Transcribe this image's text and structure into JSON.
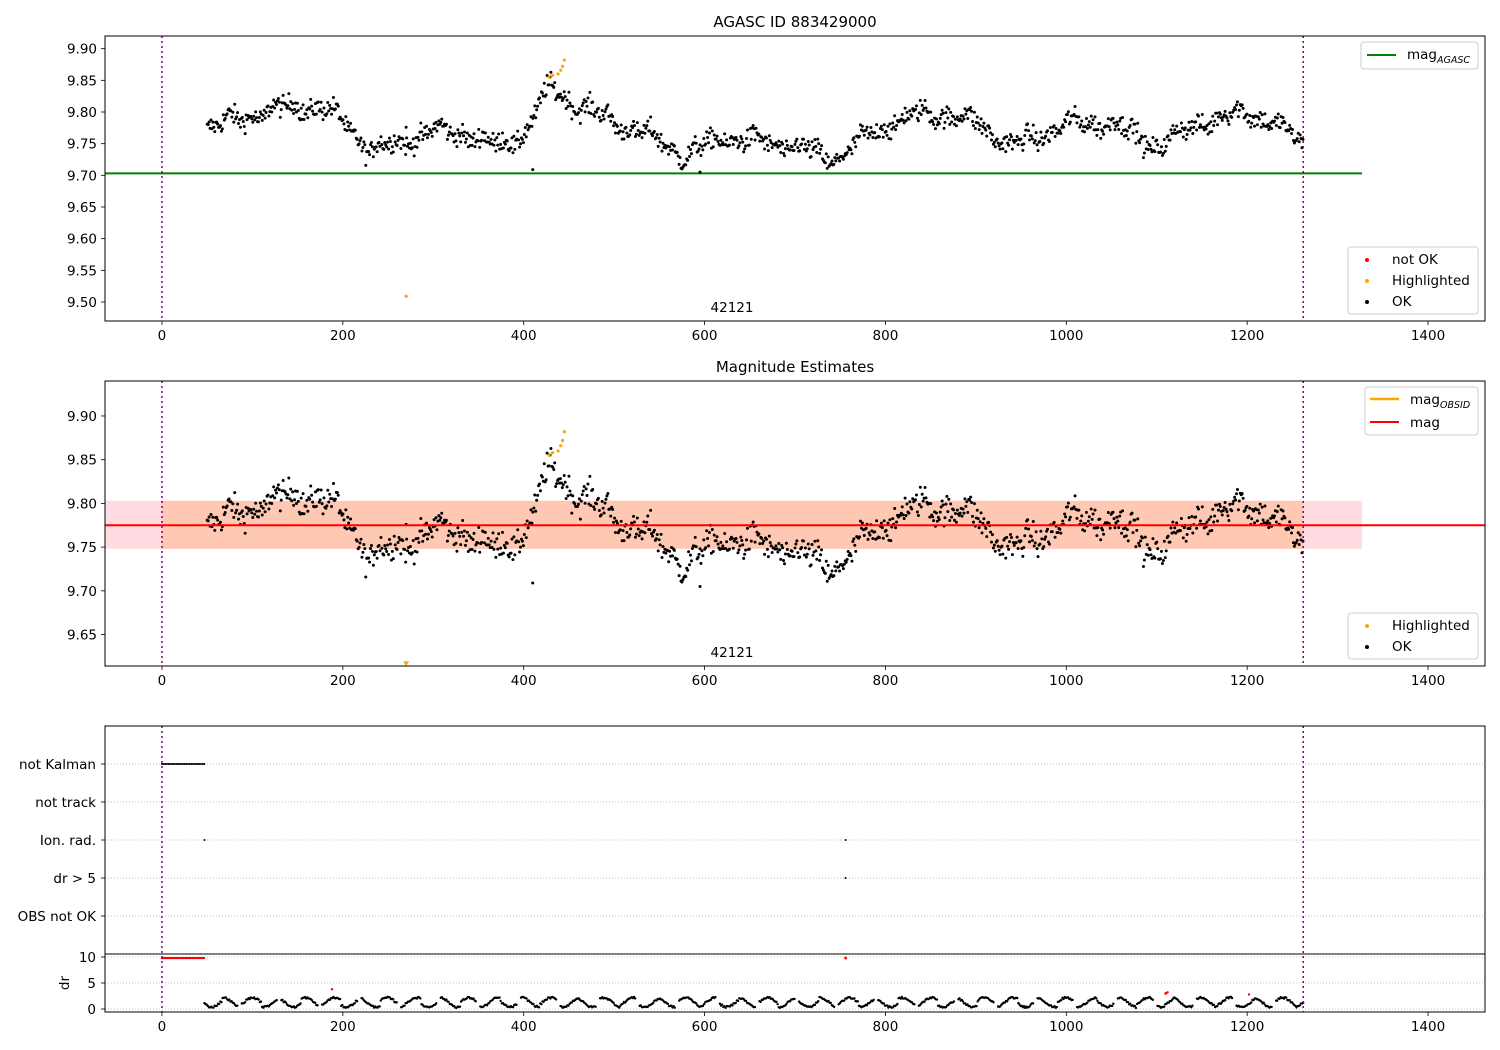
{
  "charts": {
    "top": {
      "title": "AGASC ID 883429000",
      "obsid_label": "42121",
      "mag_agasc": 9.703,
      "ylim": [
        9.47,
        9.92
      ],
      "yticks": [
        "9.50",
        "9.55",
        "9.60",
        "9.65",
        "9.70",
        "9.75",
        "9.80",
        "9.85",
        "9.90"
      ],
      "legend_line_label": "mag",
      "legend_line_sub": "AGASC",
      "legend_points": [
        "not OK",
        "Highlighted",
        "OK"
      ]
    },
    "mid": {
      "title": "Magnitude Estimates",
      "obsid_label": "42121",
      "mag": 9.775,
      "band": [
        9.748,
        9.803
      ],
      "ylim": [
        9.614,
        9.94
      ],
      "yticks": [
        "9.65",
        "9.70",
        "9.75",
        "9.80",
        "9.85",
        "9.90"
      ],
      "legend_line1_label": "mag",
      "legend_line1_sub": "OBSID",
      "legend_line2_label": "mag",
      "legend_points": [
        "Highlighted",
        "OK"
      ]
    },
    "flags": {
      "rows": [
        "not Kalman",
        "not track",
        "Ion. rad.",
        "dr > 5",
        "OBS not OK"
      ],
      "dr_label": "dr",
      "dr_ticks": [
        "0",
        "5",
        "10"
      ]
    },
    "xlim": [
      -63,
      1463
    ],
    "xticks": [
      "0",
      "200",
      "400",
      "600",
      "800",
      "1000",
      "1200",
      "1400"
    ],
    "obs_bounds": [
      0,
      1262
    ]
  },
  "colors": {
    "agasc_line": "#008000",
    "mag_line": "#ff0000",
    "obsid_line": "#ffa500",
    "highlighted": "#ffa500",
    "not_ok": "#ff0000",
    "ok": "#000000",
    "bounds": "#800080",
    "band": "#ffc0cb",
    "band_inner": "#ffb07a"
  },
  "chart_data": [
    {
      "type": "scatter",
      "title": "AGASC ID 883429000",
      "xlabel": "",
      "ylabel": "",
      "xlim": [
        -63,
        1463
      ],
      "ylim": [
        9.47,
        9.92
      ],
      "series": [
        {
          "name": "OK",
          "style": "black points",
          "description": "~1200 magnitude samples, x 50–1262, values ~9.71–9.85 following the curve in keypoints"
        },
        {
          "name": "Highlighted",
          "style": "orange points",
          "x": [
            270,
            428,
            432,
            438,
            441,
            443,
            445
          ],
          "values": [
            9.509,
            9.855,
            9.858,
            9.86,
            9.866,
            9.872,
            9.882
          ]
        },
        {
          "name": "mag_AGASC",
          "style": "green line",
          "values": [
            9.703
          ]
        }
      ],
      "trend_keypoints": {
        "x": [
          50,
          100,
          150,
          180,
          200,
          230,
          260,
          300,
          340,
          370,
          400,
          430,
          460,
          500,
          550,
          580,
          620,
          700,
          740,
          760,
          800,
          850,
          900,
          940,
          1000,
          1050,
          1080,
          1100,
          1150,
          1200,
          1220,
          1262
        ],
        "values": [
          9.775,
          9.795,
          9.81,
          9.805,
          9.785,
          9.74,
          9.75,
          9.77,
          9.765,
          9.745,
          9.765,
          9.84,
          9.81,
          9.785,
          9.755,
          9.73,
          9.76,
          9.745,
          9.725,
          9.74,
          9.78,
          9.8,
          9.785,
          9.745,
          9.78,
          9.785,
          9.76,
          9.745,
          9.785,
          9.8,
          9.79,
          9.75
        ]
      }
    },
    {
      "type": "scatter",
      "title": "Magnitude Estimates",
      "xlim": [
        -63,
        1463
      ],
      "ylim": [
        9.614,
        9.94
      ],
      "series": [
        {
          "name": "OK",
          "style": "black points",
          "description": "same samples as top panel"
        },
        {
          "name": "Highlighted",
          "style": "orange points",
          "x": [
            270,
            428,
            432,
            438,
            441,
            443,
            445
          ],
          "values": [
            9.616,
            9.855,
            9.858,
            9.86,
            9.866,
            9.872,
            9.882
          ]
        },
        {
          "name": "mag",
          "style": "red line",
          "values": [
            9.775
          ]
        },
        {
          "name": "mag_OBSID",
          "style": "orange line",
          "values": [
            9.775
          ]
        }
      ],
      "band": {
        "lower": 9.748,
        "upper": 9.803,
        "x_range": [
          -63,
          1327
        ]
      }
    },
    {
      "type": "scatter",
      "title": "",
      "ylabel": "dr",
      "categories": [
        "not Kalman",
        "not track",
        "Ion. rad.",
        "dr > 5",
        "OBS not OK"
      ],
      "flag_points": {
        "not Kalman": {
          "x_range": [
            0,
            48
          ]
        },
        "Ion. rad.": {
          "x": [
            47,
            756
          ]
        },
        "dr > 5": {
          "x": [
            756
          ]
        }
      },
      "dr_series": {
        "ylim": [
          -0.5,
          10.5
        ],
        "not_ok_x": [
          [
            0,
            48
          ],
          [
            756
          ],
          [
            190
          ],
          [
            1110,
            1112
          ],
          [
            1202
          ]
        ],
        "description": "dr values 0–3 from x 47 to 1262, oscillating; clipped at 10 for x 0–48 (red)"
      }
    }
  ]
}
